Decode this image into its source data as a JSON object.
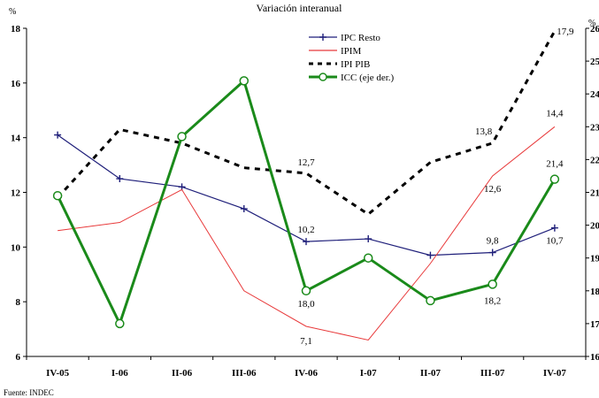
{
  "chart_data": {
    "type": "line",
    "title": "Variación interanual",
    "left_axis_unit": "%",
    "right_axis_unit": "%",
    "categories": [
      "IV-05",
      "I-06",
      "II-06",
      "III-06",
      "IV-06",
      "I-07",
      "II-07",
      "III-07",
      "IV-07"
    ],
    "ylim_left": [
      6,
      18
    ],
    "yticks_left": [
      6,
      8,
      10,
      12,
      14,
      16,
      18
    ],
    "ylim_right": [
      16,
      26
    ],
    "yticks_right": [
      16,
      17,
      18,
      19,
      20,
      21,
      22,
      23,
      24,
      25,
      26
    ],
    "series": [
      {
        "name": "IPC Resto",
        "axis": "left",
        "color": "#1f1f7a",
        "style": "plus-line",
        "values": [
          14.1,
          12.5,
          12.2,
          11.4,
          10.2,
          10.3,
          9.7,
          9.8,
          10.7
        ]
      },
      {
        "name": "IPIM",
        "axis": "left",
        "color": "#e8393a",
        "style": "thin-line",
        "values": [
          10.6,
          10.9,
          12.1,
          8.4,
          7.1,
          6.6,
          9.4,
          12.6,
          14.4
        ]
      },
      {
        "name": "IPI PIB",
        "axis": "left",
        "color": "#000000",
        "style": "dashed",
        "values": [
          11.8,
          14.3,
          13.8,
          12.9,
          12.7,
          11.2,
          13.1,
          13.8,
          17.9
        ]
      },
      {
        "name": "ICC (eje der.)",
        "axis": "right",
        "color": "#1a8a1a",
        "style": "circle-line",
        "values": [
          20.9,
          17.0,
          22.7,
          24.4,
          18.0,
          19.0,
          17.7,
          18.2,
          21.4
        ]
      }
    ],
    "data_labels": [
      {
        "series": "IPI PIB",
        "index": 4,
        "text": "12,7"
      },
      {
        "series": "IPC Resto",
        "index": 4,
        "text": "10,2"
      },
      {
        "series": "ICC (eje der.)",
        "index": 4,
        "text": "18,0"
      },
      {
        "series": "IPIM",
        "index": 4,
        "text": "7,1"
      },
      {
        "series": "IPI PIB",
        "index": 7,
        "text": "13,8"
      },
      {
        "series": "IPIM",
        "index": 7,
        "text": "12,6"
      },
      {
        "series": "IPC Resto",
        "index": 7,
        "text": "9,8"
      },
      {
        "series": "ICC (eje der.)",
        "index": 7,
        "text": "18,2"
      },
      {
        "series": "IPI PIB",
        "index": 8,
        "text": "17,9"
      },
      {
        "series": "IPIM",
        "index": 8,
        "text": "14,4"
      },
      {
        "series": "ICC (eje der.)",
        "index": 8,
        "text": "21,4"
      },
      {
        "series": "IPC Resto",
        "index": 8,
        "text": "10,7"
      }
    ],
    "legend_position": "top-center",
    "grid": false
  },
  "source_note": "Fuente: INDEC"
}
